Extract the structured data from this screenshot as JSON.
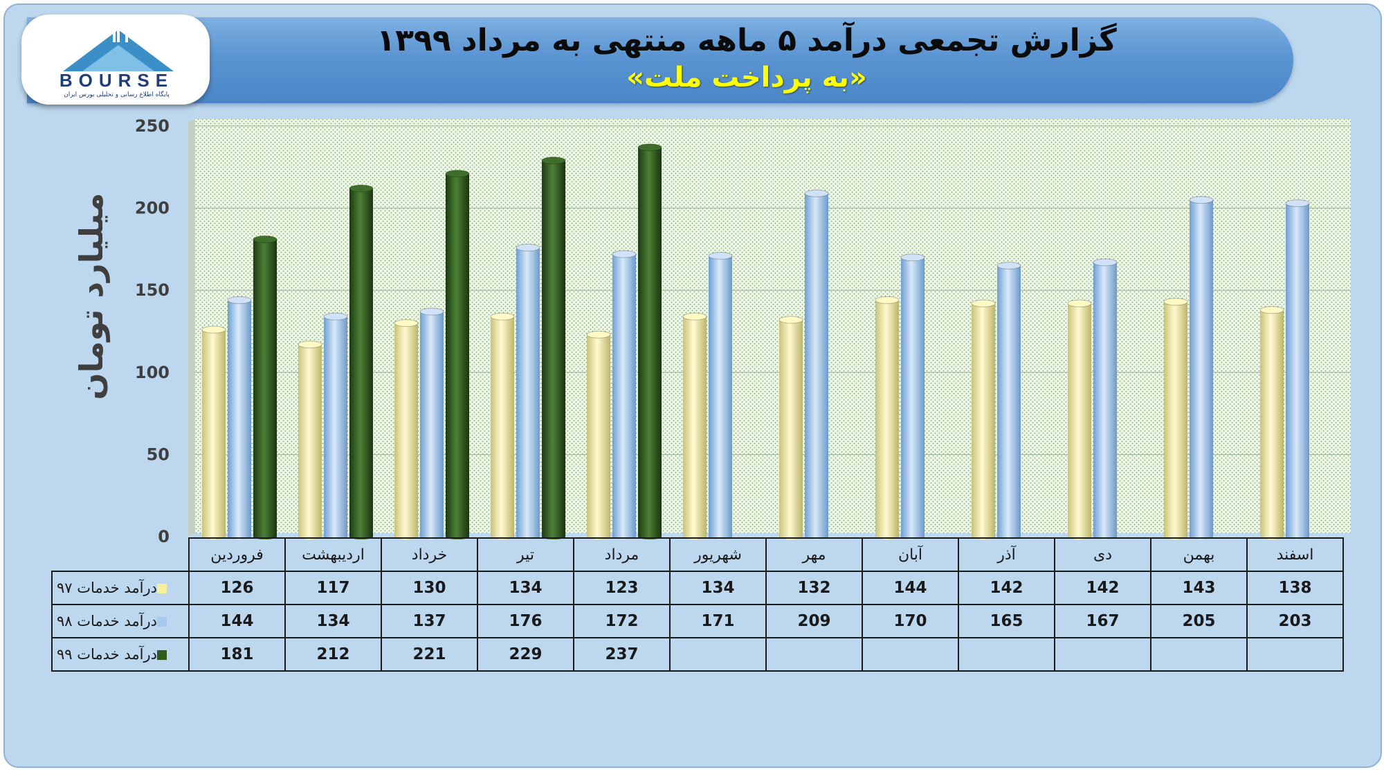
{
  "header": {
    "title": "گزارش تجمعی درآمد ۵ ماهه منتهی به مرداد ۱۳۹۹",
    "subtitle": "«به پرداخت ملت»"
  },
  "logo": {
    "word": "BOURSE",
    "tagline": "پایگاه اطلاع رسانی و تحلیلی بورس ایران"
  },
  "colors": {
    "frame": "#bdd7ee",
    "banner": "#5b95d2",
    "title": "#0b0b0b",
    "subtitle": "#ffff00",
    "series_97": "#f5f0a0",
    "series_98": "#a9c9ec",
    "series_99": "#2f5b1f"
  },
  "chart_data": {
    "type": "bar",
    "ylabel": "میلیارد تومان",
    "xlabel": "",
    "ylim": [
      0,
      250
    ],
    "yticks": [
      0,
      50,
      100,
      150,
      200,
      250
    ],
    "grid": true,
    "legend": "table-below",
    "categories": [
      "فروردین",
      "اردیبهشت",
      "خرداد",
      "تیر",
      "مرداد",
      "شهریور",
      "مهر",
      "آبان",
      "آذر",
      "دی",
      "بهمن",
      "اسفند"
    ],
    "series": [
      {
        "name": "درآمد خدمات ۹۷",
        "color": "#f5f0a0",
        "values": [
          126,
          117,
          130,
          134,
          123,
          134,
          132,
          144,
          142,
          142,
          143,
          138
        ]
      },
      {
        "name": "درآمد خدمات ۹۸",
        "color": "#a9c9ec",
        "values": [
          144,
          134,
          137,
          176,
          172,
          171,
          209,
          170,
          165,
          167,
          205,
          203
        ]
      },
      {
        "name": "درآمد خدمات ۹۹",
        "color": "#2f5b1f",
        "values": [
          181,
          212,
          221,
          229,
          237,
          null,
          null,
          null,
          null,
          null,
          null,
          null
        ]
      }
    ]
  }
}
